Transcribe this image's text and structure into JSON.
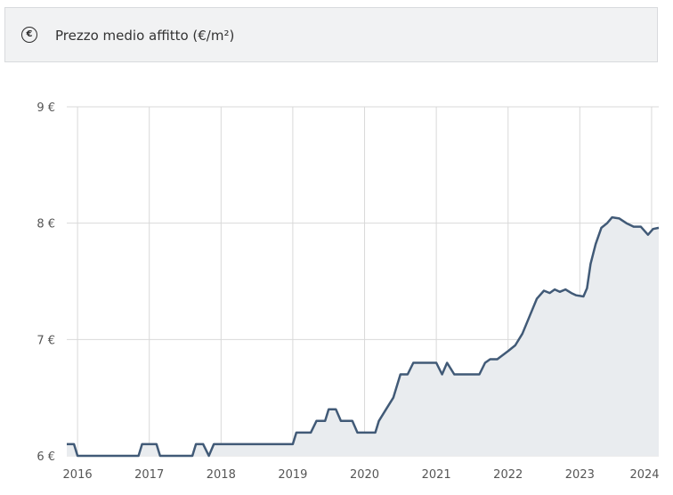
{
  "header": {
    "icon": "euro-icon",
    "title": "Prezzo medio affitto (€/m²)"
  },
  "chart_data": {
    "type": "area",
    "title": "Prezzo medio affitto (€/m²)",
    "xlabel": "",
    "ylabel": "",
    "ylim": [
      6,
      9
    ],
    "yticks": [
      6,
      7,
      8,
      9
    ],
    "ytick_labels": [
      "6 €",
      "7 €",
      "8 €",
      "9 €"
    ],
    "xlim": [
      2015.85,
      2024.1
    ],
    "xticks": [
      2016,
      2017,
      2018,
      2019,
      2020,
      2021,
      2022,
      2023,
      2024
    ],
    "xtick_labels": [
      "2016",
      "2017",
      "2018",
      "2019",
      "2020",
      "2021",
      "2022",
      "2023",
      "2024"
    ],
    "grid": true,
    "colors": {
      "line": "#415a77",
      "fill": "#e9ecef",
      "grid": "#d9d9d9"
    },
    "series": [
      {
        "x": [
          2015.85,
          2015.95,
          2016.0,
          2016.3,
          2016.6,
          2016.85,
          2016.9,
          2017.1,
          2017.15,
          2017.6,
          2017.65,
          2017.75,
          2017.83,
          2017.9,
          2018.0,
          2018.5,
          2019.0,
          2019.05,
          2019.25,
          2019.33,
          2019.45,
          2019.5,
          2019.6,
          2019.67,
          2019.83,
          2019.9,
          2020.0,
          2020.15,
          2020.2,
          2020.3,
          2020.4,
          2020.5,
          2020.6,
          2020.68,
          2020.75,
          2020.85,
          2021.0,
          2021.08,
          2021.15,
          2021.25,
          2021.4,
          2021.6,
          2021.68,
          2021.75,
          2021.85,
          2022.0,
          2022.1,
          2022.2,
          2022.3,
          2022.4,
          2022.5,
          2022.58,
          2022.65,
          2022.72,
          2022.8,
          2022.88,
          2022.95,
          2023.05,
          2023.1,
          2023.15,
          2023.22,
          2023.3,
          2023.38,
          2023.45,
          2023.55,
          2023.65,
          2023.75,
          2023.85,
          2023.95,
          2024.02,
          2024.1
        ],
        "y": [
          6.1,
          6.1,
          6.0,
          6.0,
          6.0,
          6.0,
          6.1,
          6.1,
          6.0,
          6.0,
          6.1,
          6.1,
          6.0,
          6.1,
          6.1,
          6.1,
          6.1,
          6.2,
          6.2,
          6.3,
          6.3,
          6.4,
          6.4,
          6.3,
          6.3,
          6.2,
          6.2,
          6.2,
          6.3,
          6.4,
          6.5,
          6.7,
          6.7,
          6.8,
          6.8,
          6.8,
          6.8,
          6.7,
          6.8,
          6.7,
          6.7,
          6.7,
          6.8,
          6.83,
          6.83,
          6.9,
          6.95,
          7.05,
          7.2,
          7.35,
          7.42,
          7.4,
          7.43,
          7.41,
          7.43,
          7.4,
          7.38,
          7.37,
          7.44,
          7.65,
          7.82,
          7.96,
          8.0,
          8.05,
          8.04,
          8.0,
          7.97,
          7.97,
          7.9,
          7.95,
          7.96
        ]
      }
    ]
  }
}
